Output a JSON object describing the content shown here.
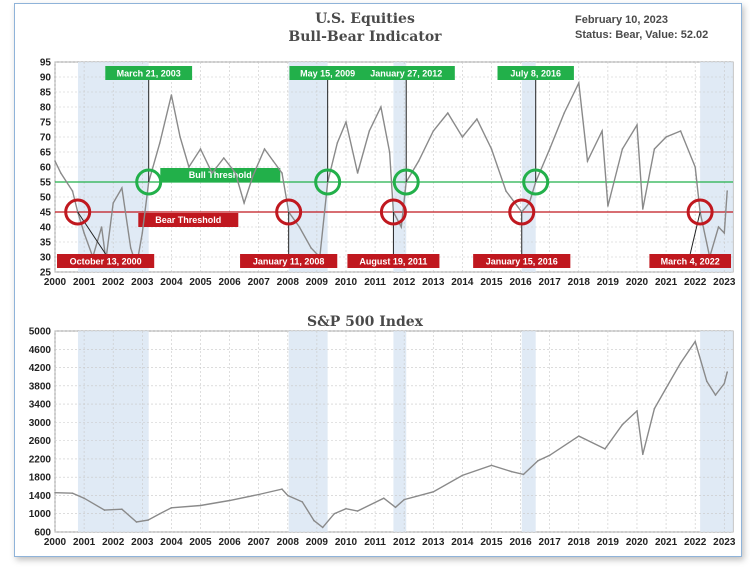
{
  "chart_data": [
    {
      "type": "line",
      "title": "U.S. Equities",
      "subtitle": "Bull-Bear Indicator",
      "date_label": "February 10, 2023",
      "status_label": "Status: Bear, Value: 52.02",
      "ylim": [
        25,
        95
      ],
      "yticks": [
        25,
        30,
        35,
        40,
        45,
        50,
        55,
        60,
        65,
        70,
        75,
        80,
        85,
        90,
        95
      ],
      "xticks": [
        "2000",
        "2001",
        "2002",
        "2003",
        "2004",
        "2005",
        "2006",
        "2007",
        "2008",
        "2009",
        "2010",
        "2011",
        "2012",
        "2013",
        "2014",
        "2015",
        "2016",
        "2017",
        "2018",
        "2019",
        "2020",
        "2021",
        "2022",
        "2023"
      ],
      "thresholds": [
        {
          "label": "Bull Threshold",
          "value": 55,
          "color": "#22b04a"
        },
        {
          "label": "Bear Threshold",
          "value": 45,
          "color": "#c0181f"
        }
      ],
      "bear_periods": [
        [
          2000.79,
          2003.22
        ],
        [
          2008.03,
          2009.37
        ],
        [
          2011.63,
          2012.07
        ],
        [
          2016.04,
          2016.52
        ],
        [
          2022.17,
          2023.3
        ]
      ],
      "signals": [
        {
          "label": "October 13, 2000",
          "x": 2000.78,
          "y": 45,
          "kind": "bear"
        },
        {
          "label": "March 21, 2003",
          "x": 2003.22,
          "y": 55,
          "kind": "bull"
        },
        {
          "label": "January 11, 2008",
          "x": 2008.03,
          "y": 45,
          "kind": "bear"
        },
        {
          "label": "May 15, 2009",
          "x": 2009.37,
          "y": 55,
          "kind": "bull"
        },
        {
          "label": "August 19, 2011",
          "x": 2011.63,
          "y": 45,
          "kind": "bear"
        },
        {
          "label": "January 27, 2012",
          "x": 2012.07,
          "y": 55,
          "kind": "bull"
        },
        {
          "label": "January 15, 2016",
          "x": 2016.04,
          "y": 45,
          "kind": "bear"
        },
        {
          "label": "July 8, 2016",
          "x": 2016.52,
          "y": 55,
          "kind": "bull"
        },
        {
          "label": "March 4, 2022",
          "x": 2022.17,
          "y": 45,
          "kind": "bear"
        }
      ],
      "series": [
        {
          "values": [
            [
              2000.0,
              62
            ],
            [
              2000.2,
              58
            ],
            [
              2000.4,
              55
            ],
            [
              2000.6,
              52
            ],
            [
              2000.78,
              45
            ],
            [
              2001.0,
              38
            ],
            [
              2001.3,
              30
            ],
            [
              2001.6,
              40
            ],
            [
              2001.75,
              29
            ],
            [
              2002.0,
              48
            ],
            [
              2002.3,
              53
            ],
            [
              2002.6,
              33
            ],
            [
              2002.8,
              27
            ],
            [
              2003.0,
              38
            ],
            [
              2003.22,
              55
            ],
            [
              2003.6,
              68
            ],
            [
              2004.0,
              84
            ],
            [
              2004.3,
              70
            ],
            [
              2004.6,
              60
            ],
            [
              2005.0,
              66
            ],
            [
              2005.4,
              58
            ],
            [
              2005.8,
              63
            ],
            [
              2006.2,
              58
            ],
            [
              2006.5,
              48
            ],
            [
              2006.8,
              57
            ],
            [
              2007.2,
              66
            ],
            [
              2007.5,
              62
            ],
            [
              2007.8,
              58
            ],
            [
              2008.03,
              45
            ],
            [
              2008.4,
              40
            ],
            [
              2008.8,
              33
            ],
            [
              2009.1,
              30
            ],
            [
              2009.37,
              55
            ],
            [
              2009.7,
              68
            ],
            [
              2010.0,
              75
            ],
            [
              2010.4,
              58
            ],
            [
              2010.8,
              72
            ],
            [
              2011.2,
              80
            ],
            [
              2011.5,
              65
            ],
            [
              2011.63,
              45
            ],
            [
              2011.9,
              40
            ],
            [
              2012.07,
              55
            ],
            [
              2012.5,
              62
            ],
            [
              2013.0,
              72
            ],
            [
              2013.5,
              78
            ],
            [
              2014.0,
              70
            ],
            [
              2014.5,
              76
            ],
            [
              2015.0,
              66
            ],
            [
              2015.5,
              52
            ],
            [
              2016.04,
              45
            ],
            [
              2016.3,
              48
            ],
            [
              2016.52,
              55
            ],
            [
              2017.0,
              66
            ],
            [
              2017.5,
              78
            ],
            [
              2018.0,
              88
            ],
            [
              2018.3,
              62
            ],
            [
              2018.8,
              72
            ],
            [
              2019.0,
              47
            ],
            [
              2019.5,
              66
            ],
            [
              2020.0,
              74
            ],
            [
              2020.2,
              46
            ],
            [
              2020.6,
              66
            ],
            [
              2021.0,
              70
            ],
            [
              2021.5,
              72
            ],
            [
              2022.0,
              60
            ],
            [
              2022.17,
              45
            ],
            [
              2022.5,
              30
            ],
            [
              2022.8,
              40
            ],
            [
              2023.0,
              38
            ],
            [
              2023.1,
              52
            ]
          ]
        }
      ]
    },
    {
      "type": "line",
      "title": "S&P 500 Index",
      "ylim": [
        600,
        5000
      ],
      "yticks": [
        600,
        1000,
        1400,
        1800,
        2200,
        2600,
        3000,
        3400,
        3800,
        4200,
        4600,
        5000
      ],
      "xticks": [
        "2000",
        "2001",
        "2002",
        "2003",
        "2004",
        "2005",
        "2006",
        "2007",
        "2008",
        "2009",
        "2010",
        "2011",
        "2012",
        "2013",
        "2014",
        "2015",
        "2016",
        "2017",
        "2018",
        "2019",
        "2020",
        "2021",
        "2022",
        "2023"
      ],
      "series": [
        {
          "values": [
            [
              2000.0,
              1460
            ],
            [
              2000.6,
              1450
            ],
            [
              2001.0,
              1340
            ],
            [
              2001.7,
              1080
            ],
            [
              2002.3,
              1100
            ],
            [
              2002.8,
              820
            ],
            [
              2003.2,
              860
            ],
            [
              2003.6,
              1000
            ],
            [
              2004.0,
              1130
            ],
            [
              2005.0,
              1180
            ],
            [
              2006.0,
              1290
            ],
            [
              2007.0,
              1420
            ],
            [
              2007.8,
              1540
            ],
            [
              2008.0,
              1400
            ],
            [
              2008.5,
              1260
            ],
            [
              2008.9,
              850
            ],
            [
              2009.2,
              700
            ],
            [
              2009.6,
              1000
            ],
            [
              2010.0,
              1110
            ],
            [
              2010.4,
              1060
            ],
            [
              2011.3,
              1340
            ],
            [
              2011.7,
              1140
            ],
            [
              2012.0,
              1310
            ],
            [
              2013.0,
              1480
            ],
            [
              2014.0,
              1840
            ],
            [
              2015.0,
              2060
            ],
            [
              2015.7,
              1920
            ],
            [
              2016.1,
              1860
            ],
            [
              2016.6,
              2160
            ],
            [
              2017.0,
              2280
            ],
            [
              2018.0,
              2700
            ],
            [
              2018.9,
              2420
            ],
            [
              2019.5,
              2950
            ],
            [
              2020.0,
              3250
            ],
            [
              2020.2,
              2300
            ],
            [
              2020.6,
              3300
            ],
            [
              2021.0,
              3750
            ],
            [
              2021.5,
              4300
            ],
            [
              2022.0,
              4770
            ],
            [
              2022.4,
              3900
            ],
            [
              2022.7,
              3600
            ],
            [
              2023.0,
              3850
            ],
            [
              2023.1,
              4100
            ]
          ]
        }
      ]
    }
  ]
}
